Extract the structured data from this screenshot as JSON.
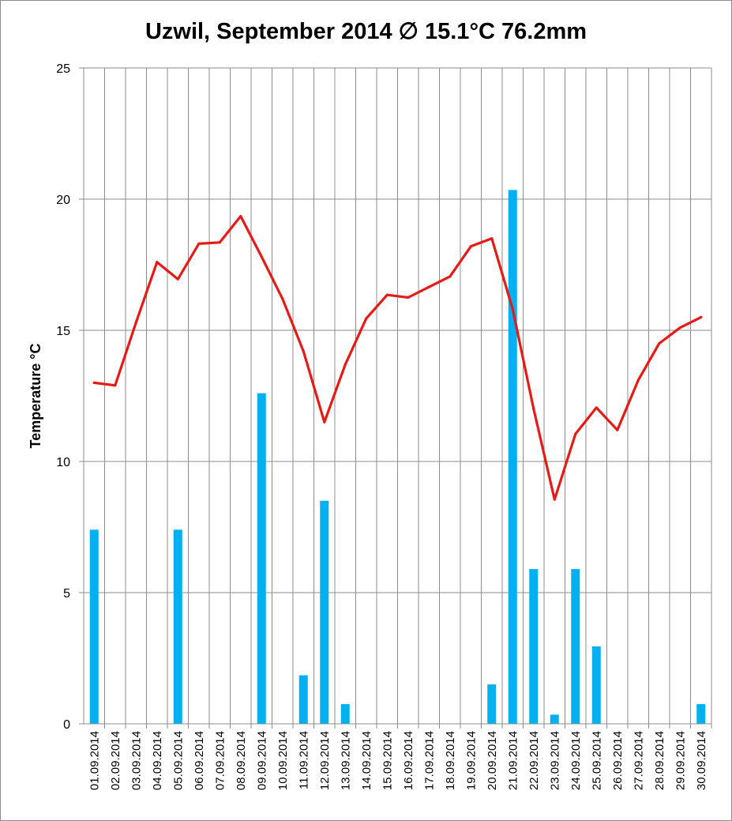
{
  "chart_data": {
    "type": "bar+line",
    "title": "Uzwil, September 2014 ∅ 15.1°C 76.2mm",
    "ylabel": "Temperature °C",
    "xlabel": "",
    "ylim": [
      0,
      25
    ],
    "yticks": [
      "0",
      "5",
      "10",
      "15",
      "20",
      "25"
    ],
    "grid": true,
    "legend": "none",
    "categories": [
      "01.09.2014",
      "02.09.2014",
      "03.09.2014",
      "04.09.2014",
      "05.09.2014",
      "06.09.2014",
      "07.09.2014",
      "08.09.2014",
      "09.09.2014",
      "10.09.2014",
      "11.09.2014",
      "12.09.2014",
      "13.09.2014",
      "14.09.2014",
      "15.09.2014",
      "16.09.2014",
      "17.09.2014",
      "18.09.2014",
      "19.09.2014",
      "20.09.2014",
      "21.09.2014",
      "22.09.2014",
      "23.09.2014",
      "24.09.2014",
      "25.09.2014",
      "26.09.2014",
      "27.09.2014",
      "28.09.2014",
      "29.09.2014",
      "30.09.2014"
    ],
    "series": [
      {
        "type": "bar",
        "color": "#00b0f0",
        "values": [
          7.4,
          0,
          0,
          0,
          7.4,
          0,
          0,
          0,
          12.6,
          0,
          1.85,
          8.5,
          0.75,
          0,
          0,
          0,
          0,
          0,
          0,
          1.5,
          20.35,
          5.9,
          0.35,
          5.9,
          2.95,
          0,
          0,
          0,
          0,
          0.75
        ]
      },
      {
        "type": "line",
        "color": "#e41b17",
        "values": [
          13.0,
          12.9,
          15.3,
          17.6,
          16.95,
          18.3,
          18.35,
          19.35,
          17.8,
          16.2,
          14.2,
          11.5,
          13.7,
          15.45,
          16.35,
          16.25,
          16.65,
          17.05,
          18.2,
          18.5,
          15.8,
          12.0,
          8.55,
          11.05,
          12.05,
          11.2,
          13.1,
          14.5,
          15.1,
          15.5
        ]
      }
    ]
  }
}
